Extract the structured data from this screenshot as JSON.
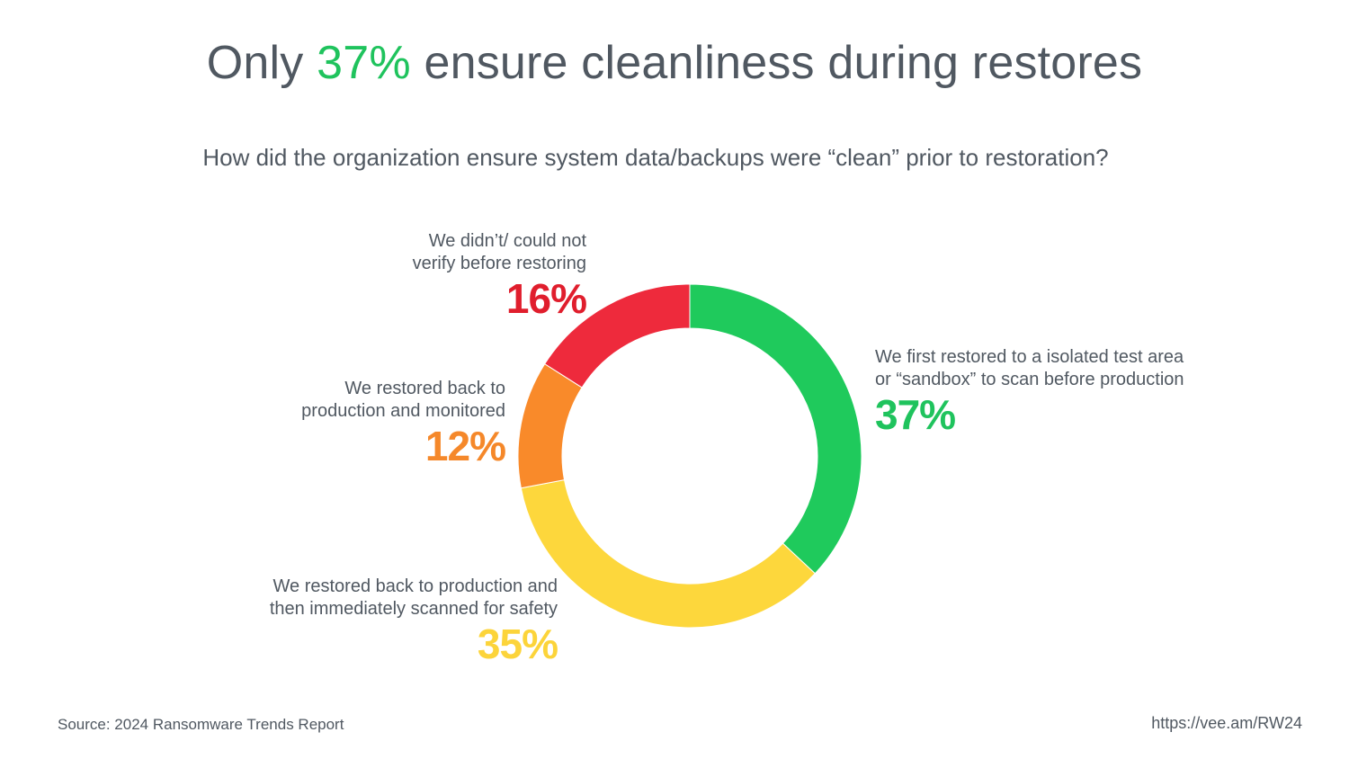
{
  "header": {
    "title_pre": "Only ",
    "title_highlight": "37%",
    "title_post": " ensure cleanliness during restores",
    "subtitle": "How did the organization ensure system data/backups were “clean” prior to restoration?"
  },
  "chart_data": {
    "type": "pie",
    "donut": true,
    "slices": [
      {
        "label_lines": [
          "We first restored to a isolated test area",
          "or “sandbox” to scan before production"
        ],
        "value": 37,
        "value_label": "37%",
        "color": "#1fca5c"
      },
      {
        "label_lines": [
          "We restored back to production and",
          "then immediately scanned for safety"
        ],
        "value": 35,
        "value_label": "35%",
        "color": "#fdd73c"
      },
      {
        "label_lines": [
          "We restored back to",
          "production and monitored"
        ],
        "value": 12,
        "value_label": "12%",
        "color": "#f98a2a"
      },
      {
        "label_lines": [
          "We didn’t/ could not",
          "verify before restoring"
        ],
        "value": 16,
        "value_label": "16%",
        "color": "#ee2a3c"
      }
    ],
    "value_label_colors": [
      "#1fc35d",
      "#fcd43a",
      "#f5882a",
      "#e01e2d"
    ]
  },
  "footer": {
    "source": "Source: 2024 Ransomware Trends Report",
    "link": "https://vee.am/RW24"
  }
}
